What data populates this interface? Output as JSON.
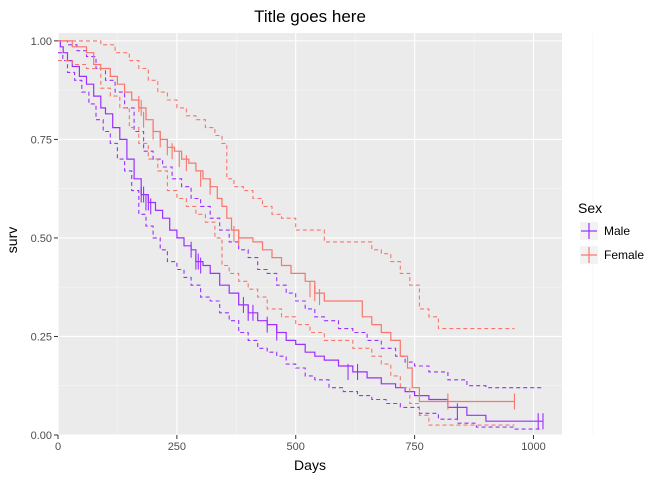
{
  "chart_data": {
    "type": "line",
    "title": "Title goes here",
    "xlabel": "Days",
    "ylabel": "surv",
    "xlim": [
      0,
      1060
    ],
    "ylim": [
      0,
      1.02
    ],
    "x_ticks": [
      0,
      250,
      500,
      750,
      1000
    ],
    "x_tick_labels": [
      "0",
      "250",
      "500",
      "750",
      "1000"
    ],
    "y_ticks": [
      0,
      0.25,
      0.5,
      0.75,
      1.0
    ],
    "y_tick_labels": [
      "0.00",
      "0.25",
      "0.50",
      "0.75",
      "1.00"
    ],
    "grid": true,
    "panel_background": "#ebebeb",
    "legend": {
      "title": "Sex",
      "position": "right"
    },
    "series": [
      {
        "name": "Male",
        "color": "#9b30ff",
        "surv": [
          [
            0,
            1.0
          ],
          [
            5,
            0.985
          ],
          [
            11,
            0.97
          ],
          [
            20,
            0.95
          ],
          [
            30,
            0.935
          ],
          [
            45,
            0.91
          ],
          [
            60,
            0.89
          ],
          [
            75,
            0.86
          ],
          [
            90,
            0.83
          ],
          [
            100,
            0.815
          ],
          [
            115,
            0.78
          ],
          [
            130,
            0.75
          ],
          [
            145,
            0.7
          ],
          [
            160,
            0.65
          ],
          [
            175,
            0.61
          ],
          [
            190,
            0.59
          ],
          [
            205,
            0.57
          ],
          [
            220,
            0.55
          ],
          [
            235,
            0.52
          ],
          [
            250,
            0.5
          ],
          [
            265,
            0.48
          ],
          [
            280,
            0.47
          ],
          [
            290,
            0.44
          ],
          [
            305,
            0.43
          ],
          [
            320,
            0.41
          ],
          [
            340,
            0.38
          ],
          [
            360,
            0.36
          ],
          [
            380,
            0.33
          ],
          [
            400,
            0.31
          ],
          [
            420,
            0.29
          ],
          [
            440,
            0.28
          ],
          [
            460,
            0.26
          ],
          [
            480,
            0.24
          ],
          [
            500,
            0.23
          ],
          [
            520,
            0.21
          ],
          [
            540,
            0.2
          ],
          [
            560,
            0.19
          ],
          [
            590,
            0.175
          ],
          [
            620,
            0.16
          ],
          [
            650,
            0.145
          ],
          [
            680,
            0.13
          ],
          [
            710,
            0.12
          ],
          [
            730,
            0.11
          ],
          [
            750,
            0.1
          ],
          [
            780,
            0.09
          ],
          [
            820,
            0.07
          ],
          [
            860,
            0.05
          ],
          [
            900,
            0.035
          ],
          [
            1020,
            0.035
          ]
        ],
        "upper": [
          [
            0,
            1.0
          ],
          [
            5,
            1.0
          ],
          [
            20,
            0.99
          ],
          [
            40,
            0.975
          ],
          [
            60,
            0.96
          ],
          [
            80,
            0.93
          ],
          [
            100,
            0.9
          ],
          [
            120,
            0.87
          ],
          [
            140,
            0.83
          ],
          [
            160,
            0.77
          ],
          [
            180,
            0.72
          ],
          [
            200,
            0.7
          ],
          [
            220,
            0.68
          ],
          [
            240,
            0.65
          ],
          [
            260,
            0.63
          ],
          [
            280,
            0.6
          ],
          [
            300,
            0.58
          ],
          [
            320,
            0.55
          ],
          [
            340,
            0.52
          ],
          [
            360,
            0.49
          ],
          [
            380,
            0.47
          ],
          [
            400,
            0.45
          ],
          [
            420,
            0.42
          ],
          [
            440,
            0.41
          ],
          [
            460,
            0.38
          ],
          [
            480,
            0.36
          ],
          [
            500,
            0.34
          ],
          [
            520,
            0.32
          ],
          [
            540,
            0.3
          ],
          [
            560,
            0.29
          ],
          [
            590,
            0.27
          ],
          [
            620,
            0.26
          ],
          [
            650,
            0.24
          ],
          [
            680,
            0.22
          ],
          [
            710,
            0.2
          ],
          [
            730,
            0.185
          ],
          [
            750,
            0.175
          ],
          [
            780,
            0.16
          ],
          [
            820,
            0.14
          ],
          [
            860,
            0.125
          ],
          [
            900,
            0.12
          ],
          [
            1020,
            0.12
          ]
        ],
        "lower": [
          [
            0,
            0.97
          ],
          [
            10,
            0.95
          ],
          [
            20,
            0.92
          ],
          [
            35,
            0.9
          ],
          [
            50,
            0.87
          ],
          [
            65,
            0.84
          ],
          [
            80,
            0.8
          ],
          [
            95,
            0.77
          ],
          [
            110,
            0.74
          ],
          [
            125,
            0.7
          ],
          [
            140,
            0.67
          ],
          [
            155,
            0.62
          ],
          [
            170,
            0.56
          ],
          [
            185,
            0.53
          ],
          [
            200,
            0.5
          ],
          [
            215,
            0.47
          ],
          [
            230,
            0.44
          ],
          [
            250,
            0.42
          ],
          [
            265,
            0.4
          ],
          [
            280,
            0.38
          ],
          [
            300,
            0.35
          ],
          [
            320,
            0.34
          ],
          [
            340,
            0.31
          ],
          [
            360,
            0.29
          ],
          [
            380,
            0.26
          ],
          [
            400,
            0.24
          ],
          [
            420,
            0.22
          ],
          [
            440,
            0.21
          ],
          [
            460,
            0.2
          ],
          [
            480,
            0.18
          ],
          [
            500,
            0.17
          ],
          [
            520,
            0.15
          ],
          [
            540,
            0.14
          ],
          [
            570,
            0.12
          ],
          [
            600,
            0.11
          ],
          [
            630,
            0.1
          ],
          [
            660,
            0.09
          ],
          [
            690,
            0.08
          ],
          [
            720,
            0.07
          ],
          [
            760,
            0.055
          ],
          [
            800,
            0.04
          ],
          [
            840,
            0.03
          ],
          [
            880,
            0.02
          ],
          [
            960,
            0.015
          ],
          [
            1020,
            0.015
          ]
        ],
        "censor": [
          [
            175,
            0.61
          ],
          [
            180,
            0.61
          ],
          [
            185,
            0.59
          ],
          [
            190,
            0.59
          ],
          [
            195,
            0.58
          ],
          [
            280,
            0.47
          ],
          [
            290,
            0.44
          ],
          [
            295,
            0.44
          ],
          [
            300,
            0.43
          ],
          [
            390,
            0.33
          ],
          [
            400,
            0.31
          ],
          [
            410,
            0.31
          ],
          [
            440,
            0.28
          ],
          [
            460,
            0.26
          ],
          [
            610,
            0.16
          ],
          [
            630,
            0.16
          ],
          [
            840,
            0.06
          ],
          [
            1010,
            0.035
          ],
          [
            1020,
            0.035
          ]
        ]
      },
      {
        "name": "Female",
        "color": "#f8766d",
        "surv": [
          [
            0,
            1.0
          ],
          [
            30,
            0.985
          ],
          [
            60,
            0.97
          ],
          [
            75,
            0.94
          ],
          [
            90,
            0.93
          ],
          [
            110,
            0.91
          ],
          [
            125,
            0.89
          ],
          [
            140,
            0.87
          ],
          [
            155,
            0.85
          ],
          [
            170,
            0.83
          ],
          [
            185,
            0.8
          ],
          [
            200,
            0.77
          ],
          [
            215,
            0.75
          ],
          [
            230,
            0.73
          ],
          [
            245,
            0.72
          ],
          [
            260,
            0.7
          ],
          [
            275,
            0.69
          ],
          [
            290,
            0.67
          ],
          [
            305,
            0.65
          ],
          [
            320,
            0.63
          ],
          [
            335,
            0.6
          ],
          [
            345,
            0.58
          ],
          [
            355,
            0.55
          ],
          [
            365,
            0.52
          ],
          [
            380,
            0.5
          ],
          [
            410,
            0.49
          ],
          [
            430,
            0.47
          ],
          [
            450,
            0.45
          ],
          [
            470,
            0.43
          ],
          [
            490,
            0.41
          ],
          [
            520,
            0.39
          ],
          [
            540,
            0.36
          ],
          [
            560,
            0.34
          ],
          [
            640,
            0.3
          ],
          [
            660,
            0.28
          ],
          [
            680,
            0.26
          ],
          [
            700,
            0.24
          ],
          [
            720,
            0.2
          ],
          [
            735,
            0.17
          ],
          [
            745,
            0.12
          ],
          [
            760,
            0.085
          ],
          [
            960,
            0.085
          ]
        ],
        "upper": [
          [
            0,
            1.0
          ],
          [
            60,
            1.0
          ],
          [
            90,
            0.99
          ],
          [
            120,
            0.97
          ],
          [
            150,
            0.95
          ],
          [
            170,
            0.93
          ],
          [
            190,
            0.9
          ],
          [
            210,
            0.87
          ],
          [
            230,
            0.85
          ],
          [
            250,
            0.83
          ],
          [
            270,
            0.81
          ],
          [
            290,
            0.8
          ],
          [
            310,
            0.78
          ],
          [
            330,
            0.76
          ],
          [
            345,
            0.74
          ],
          [
            355,
            0.65
          ],
          [
            370,
            0.63
          ],
          [
            390,
            0.62
          ],
          [
            410,
            0.6
          ],
          [
            430,
            0.58
          ],
          [
            450,
            0.56
          ],
          [
            470,
            0.55
          ],
          [
            500,
            0.52
          ],
          [
            530,
            0.52
          ],
          [
            560,
            0.49
          ],
          [
            640,
            0.49
          ],
          [
            660,
            0.47
          ],
          [
            680,
            0.46
          ],
          [
            700,
            0.44
          ],
          [
            720,
            0.41
          ],
          [
            740,
            0.38
          ],
          [
            760,
            0.32
          ],
          [
            780,
            0.3
          ],
          [
            800,
            0.27
          ],
          [
            960,
            0.27
          ]
        ],
        "lower": [
          [
            0,
            0.95
          ],
          [
            30,
            0.94
          ],
          [
            60,
            0.93
          ],
          [
            90,
            0.88
          ],
          [
            110,
            0.86
          ],
          [
            130,
            0.83
          ],
          [
            150,
            0.78
          ],
          [
            170,
            0.74
          ],
          [
            190,
            0.7
          ],
          [
            210,
            0.67
          ],
          [
            230,
            0.62
          ],
          [
            250,
            0.6
          ],
          [
            270,
            0.58
          ],
          [
            290,
            0.56
          ],
          [
            310,
            0.54
          ],
          [
            330,
            0.5
          ],
          [
            345,
            0.43
          ],
          [
            360,
            0.41
          ],
          [
            380,
            0.39
          ],
          [
            400,
            0.37
          ],
          [
            420,
            0.35
          ],
          [
            440,
            0.32
          ],
          [
            470,
            0.3
          ],
          [
            500,
            0.28
          ],
          [
            530,
            0.26
          ],
          [
            560,
            0.24
          ],
          [
            620,
            0.22
          ],
          [
            660,
            0.2
          ],
          [
            680,
            0.18
          ],
          [
            700,
            0.15
          ],
          [
            720,
            0.12
          ],
          [
            740,
            0.08
          ],
          [
            760,
            0.05
          ],
          [
            780,
            0.025
          ],
          [
            960,
            0.025
          ]
        ],
        "censor": [
          [
            170,
            0.84
          ],
          [
            175,
            0.83
          ],
          [
            180,
            0.8
          ],
          [
            200,
            0.77
          ],
          [
            215,
            0.75
          ],
          [
            230,
            0.73
          ],
          [
            240,
            0.72
          ],
          [
            255,
            0.7
          ],
          [
            270,
            0.69
          ],
          [
            300,
            0.65
          ],
          [
            320,
            0.63
          ],
          [
            370,
            0.51
          ],
          [
            380,
            0.5
          ],
          [
            530,
            0.37
          ],
          [
            540,
            0.36
          ],
          [
            550,
            0.35
          ],
          [
            820,
            0.085
          ],
          [
            960,
            0.085
          ]
        ]
      }
    ]
  }
}
